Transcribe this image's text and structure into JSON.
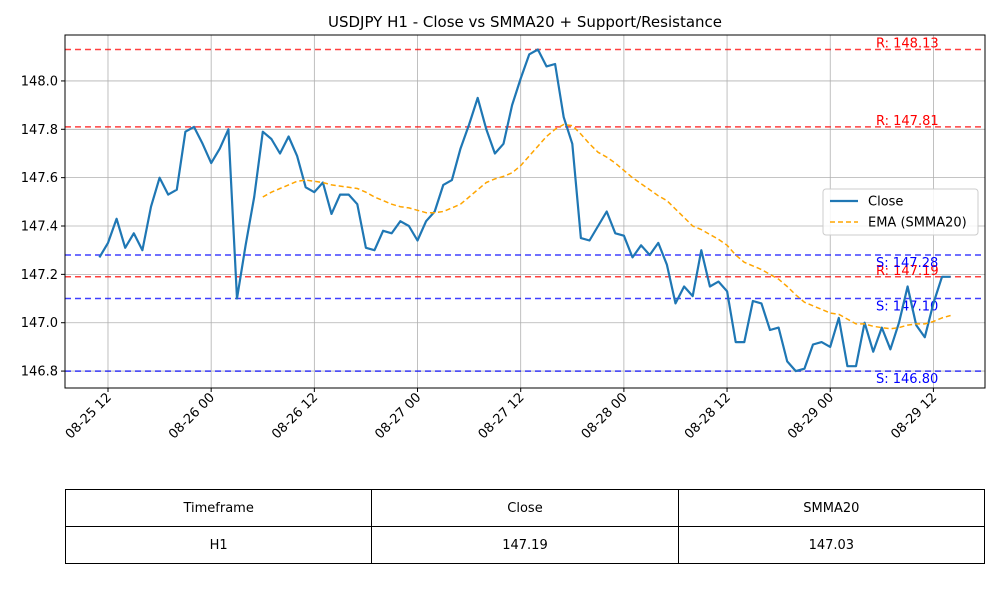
{
  "chart_data": {
    "type": "line",
    "title": "USDJPY H1 - Close vs SMMA20 + Support/Resistance",
    "xlabel": "",
    "ylabel": "",
    "x_range": [
      "2025-08-25 07:00",
      "2025-08-29 18:00"
    ],
    "ylim": [
      146.73,
      148.19
    ],
    "grid": true,
    "legend_placement": "center-right",
    "x_ticks": [
      {
        "t": "2025-08-25 12:00",
        "label": "08-25 12"
      },
      {
        "t": "2025-08-26 00:00",
        "label": "08-26 00"
      },
      {
        "t": "2025-08-26 12:00",
        "label": "08-26 12"
      },
      {
        "t": "2025-08-27 00:00",
        "label": "08-27 00"
      },
      {
        "t": "2025-08-27 12:00",
        "label": "08-27 12"
      },
      {
        "t": "2025-08-28 00:00",
        "label": "08-28 00"
      },
      {
        "t": "2025-08-28 12:00",
        "label": "08-28 12"
      },
      {
        "t": "2025-08-29 00:00",
        "label": "08-29 00"
      },
      {
        "t": "2025-08-29 12:00",
        "label": "08-29 12"
      }
    ],
    "y_ticks": [
      {
        "v": 146.8,
        "label": "146.8"
      },
      {
        "v": 147.0,
        "label": "147.0"
      },
      {
        "v": 147.2,
        "label": "147.2"
      },
      {
        "v": 147.4,
        "label": "147.4"
      },
      {
        "v": 147.6,
        "label": "147.6"
      },
      {
        "v": 147.8,
        "label": "147.8"
      },
      {
        "v": 148.0,
        "label": "148.0"
      }
    ],
    "series": [
      {
        "name": "Close",
        "color": "#1f77b4",
        "style": "solid",
        "points": [
          [
            "2025-08-25 11:00",
            147.27
          ],
          [
            "2025-08-25 12:00",
            147.33
          ],
          [
            "2025-08-25 13:00",
            147.43
          ],
          [
            "2025-08-25 14:00",
            147.31
          ],
          [
            "2025-08-25 15:00",
            147.37
          ],
          [
            "2025-08-25 16:00",
            147.3
          ],
          [
            "2025-08-25 17:00",
            147.48
          ],
          [
            "2025-08-25 18:00",
            147.6
          ],
          [
            "2025-08-25 19:00",
            147.53
          ],
          [
            "2025-08-25 20:00",
            147.55
          ],
          [
            "2025-08-25 21:00",
            147.79
          ],
          [
            "2025-08-25 22:00",
            147.81
          ],
          [
            "2025-08-25 23:00",
            147.74
          ],
          [
            "2025-08-26 00:00",
            147.66
          ],
          [
            "2025-08-26 01:00",
            147.72
          ],
          [
            "2025-08-26 02:00",
            147.8
          ],
          [
            "2025-08-26 03:00",
            147.1
          ],
          [
            "2025-08-26 04:00",
            147.32
          ],
          [
            "2025-08-26 05:00",
            147.52
          ],
          [
            "2025-08-26 06:00",
            147.79
          ],
          [
            "2025-08-26 07:00",
            147.76
          ],
          [
            "2025-08-26 08:00",
            147.7
          ],
          [
            "2025-08-26 09:00",
            147.77
          ],
          [
            "2025-08-26 10:00",
            147.69
          ],
          [
            "2025-08-26 11:00",
            147.56
          ],
          [
            "2025-08-26 12:00",
            147.54
          ],
          [
            "2025-08-26 13:00",
            147.58
          ],
          [
            "2025-08-26 14:00",
            147.45
          ],
          [
            "2025-08-26 15:00",
            147.53
          ],
          [
            "2025-08-26 16:00",
            147.53
          ],
          [
            "2025-08-26 17:00",
            147.49
          ],
          [
            "2025-08-26 18:00",
            147.31
          ],
          [
            "2025-08-26 19:00",
            147.3
          ],
          [
            "2025-08-26 20:00",
            147.38
          ],
          [
            "2025-08-26 21:00",
            147.37
          ],
          [
            "2025-08-26 22:00",
            147.42
          ],
          [
            "2025-08-26 23:00",
            147.4
          ],
          [
            "2025-08-27 00:00",
            147.34
          ],
          [
            "2025-08-27 01:00",
            147.42
          ],
          [
            "2025-08-27 02:00",
            147.46
          ],
          [
            "2025-08-27 03:00",
            147.57
          ],
          [
            "2025-08-27 04:00",
            147.59
          ],
          [
            "2025-08-27 05:00",
            147.72
          ],
          [
            "2025-08-27 06:00",
            147.82
          ],
          [
            "2025-08-27 07:00",
            147.93
          ],
          [
            "2025-08-27 08:00",
            147.8
          ],
          [
            "2025-08-27 09:00",
            147.7
          ],
          [
            "2025-08-27 10:00",
            147.74
          ],
          [
            "2025-08-27 11:00",
            147.9
          ],
          [
            "2025-08-27 12:00",
            148.01
          ],
          [
            "2025-08-27 13:00",
            148.11
          ],
          [
            "2025-08-27 14:00",
            148.13
          ],
          [
            "2025-08-27 15:00",
            148.06
          ],
          [
            "2025-08-27 16:00",
            148.07
          ],
          [
            "2025-08-27 17:00",
            147.85
          ],
          [
            "2025-08-27 18:00",
            147.74
          ],
          [
            "2025-08-27 19:00",
            147.35
          ],
          [
            "2025-08-27 20:00",
            147.34
          ],
          [
            "2025-08-27 21:00",
            147.4
          ],
          [
            "2025-08-27 22:00",
            147.46
          ],
          [
            "2025-08-27 23:00",
            147.37
          ],
          [
            "2025-08-28 00:00",
            147.36
          ],
          [
            "2025-08-28 01:00",
            147.27
          ],
          [
            "2025-08-28 02:00",
            147.32
          ],
          [
            "2025-08-28 03:00",
            147.28
          ],
          [
            "2025-08-28 04:00",
            147.33
          ],
          [
            "2025-08-28 05:00",
            147.24
          ],
          [
            "2025-08-28 06:00",
            147.08
          ],
          [
            "2025-08-28 07:00",
            147.15
          ],
          [
            "2025-08-28 08:00",
            147.11
          ],
          [
            "2025-08-28 09:00",
            147.3
          ],
          [
            "2025-08-28 10:00",
            147.15
          ],
          [
            "2025-08-28 11:00",
            147.17
          ],
          [
            "2025-08-28 12:00",
            147.13
          ],
          [
            "2025-08-28 13:00",
            146.92
          ],
          [
            "2025-08-28 14:00",
            146.92
          ],
          [
            "2025-08-28 15:00",
            147.09
          ],
          [
            "2025-08-28 16:00",
            147.08
          ],
          [
            "2025-08-28 17:00",
            146.97
          ],
          [
            "2025-08-28 18:00",
            146.98
          ],
          [
            "2025-08-28 19:00",
            146.84
          ],
          [
            "2025-08-28 20:00",
            146.8
          ],
          [
            "2025-08-28 21:00",
            146.81
          ],
          [
            "2025-08-28 22:00",
            146.91
          ],
          [
            "2025-08-28 23:00",
            146.92
          ],
          [
            "2025-08-29 00:00",
            146.9
          ],
          [
            "2025-08-29 01:00",
            147.02
          ],
          [
            "2025-08-29 02:00",
            146.82
          ],
          [
            "2025-08-29 03:00",
            146.82
          ],
          [
            "2025-08-29 04:00",
            147.0
          ],
          [
            "2025-08-29 05:00",
            146.88
          ],
          [
            "2025-08-29 06:00",
            146.98
          ],
          [
            "2025-08-29 07:00",
            146.89
          ],
          [
            "2025-08-29 08:00",
            147.0
          ],
          [
            "2025-08-29 09:00",
            147.15
          ],
          [
            "2025-08-29 10:00",
            146.99
          ],
          [
            "2025-08-29 11:00",
            146.94
          ],
          [
            "2025-08-29 12:00",
            147.08
          ],
          [
            "2025-08-29 13:00",
            147.19
          ],
          [
            "2025-08-29 14:00",
            147.19
          ]
        ]
      },
      {
        "name": "EMA (SMMA20)",
        "color": "#ffa500",
        "style": "dashed",
        "points": [
          [
            "2025-08-26 06:00",
            147.52
          ],
          [
            "2025-08-26 07:00",
            147.54
          ],
          [
            "2025-08-26 08:00",
            147.555
          ],
          [
            "2025-08-26 09:00",
            147.57
          ],
          [
            "2025-08-26 10:00",
            147.585
          ],
          [
            "2025-08-26 11:00",
            147.59
          ],
          [
            "2025-08-26 12:00",
            147.585
          ],
          [
            "2025-08-26 13:00",
            147.58
          ],
          [
            "2025-08-26 14:00",
            147.57
          ],
          [
            "2025-08-26 15:00",
            147.565
          ],
          [
            "2025-08-26 16:00",
            147.56
          ],
          [
            "2025-08-26 17:00",
            147.555
          ],
          [
            "2025-08-26 18:00",
            147.54
          ],
          [
            "2025-08-26 19:00",
            147.52
          ],
          [
            "2025-08-26 20:00",
            147.505
          ],
          [
            "2025-08-26 21:00",
            147.49
          ],
          [
            "2025-08-26 22:00",
            147.48
          ],
          [
            "2025-08-26 23:00",
            147.475
          ],
          [
            "2025-08-27 00:00",
            147.465
          ],
          [
            "2025-08-27 01:00",
            147.455
          ],
          [
            "2025-08-27 02:00",
            147.455
          ],
          [
            "2025-08-27 03:00",
            147.46
          ],
          [
            "2025-08-27 04:00",
            147.475
          ],
          [
            "2025-08-27 05:00",
            147.49
          ],
          [
            "2025-08-27 06:00",
            147.52
          ],
          [
            "2025-08-27 07:00",
            147.55
          ],
          [
            "2025-08-27 08:00",
            147.58
          ],
          [
            "2025-08-27 09:00",
            147.595
          ],
          [
            "2025-08-27 10:00",
            147.605
          ],
          [
            "2025-08-27 11:00",
            147.62
          ],
          [
            "2025-08-27 12:00",
            147.65
          ],
          [
            "2025-08-27 13:00",
            147.69
          ],
          [
            "2025-08-27 14:00",
            147.73
          ],
          [
            "2025-08-27 15:00",
            147.77
          ],
          [
            "2025-08-27 16:00",
            147.8
          ],
          [
            "2025-08-27 17:00",
            147.82
          ],
          [
            "2025-08-27 18:00",
            147.815
          ],
          [
            "2025-08-27 19:00",
            147.78
          ],
          [
            "2025-08-27 20:00",
            147.74
          ],
          [
            "2025-08-27 21:00",
            147.705
          ],
          [
            "2025-08-27 22:00",
            147.685
          ],
          [
            "2025-08-27 23:00",
            147.66
          ],
          [
            "2025-08-28 00:00",
            147.63
          ],
          [
            "2025-08-28 01:00",
            147.6
          ],
          [
            "2025-08-28 02:00",
            147.575
          ],
          [
            "2025-08-28 03:00",
            147.55
          ],
          [
            "2025-08-28 04:00",
            147.525
          ],
          [
            "2025-08-28 05:00",
            147.505
          ],
          [
            "2025-08-28 06:00",
            147.47
          ],
          [
            "2025-08-28 07:00",
            147.435
          ],
          [
            "2025-08-28 08:00",
            147.4
          ],
          [
            "2025-08-28 09:00",
            147.385
          ],
          [
            "2025-08-28 10:00",
            147.365
          ],
          [
            "2025-08-28 11:00",
            147.345
          ],
          [
            "2025-08-28 12:00",
            147.32
          ],
          [
            "2025-08-28 13:00",
            147.28
          ],
          [
            "2025-08-28 14:00",
            147.25
          ],
          [
            "2025-08-28 15:00",
            147.235
          ],
          [
            "2025-08-28 16:00",
            147.22
          ],
          [
            "2025-08-28 17:00",
            147.2
          ],
          [
            "2025-08-28 18:00",
            147.18
          ],
          [
            "2025-08-28 19:00",
            147.15
          ],
          [
            "2025-08-28 20:00",
            147.115
          ],
          [
            "2025-08-28 21:00",
            147.085
          ],
          [
            "2025-08-28 22:00",
            147.07
          ],
          [
            "2025-08-28 23:00",
            147.055
          ],
          [
            "2025-08-29 00:00",
            147.04
          ],
          [
            "2025-08-29 01:00",
            147.035
          ],
          [
            "2025-08-29 02:00",
            147.015
          ],
          [
            "2025-08-29 03:00",
            146.995
          ],
          [
            "2025-08-29 04:00",
            146.995
          ],
          [
            "2025-08-29 05:00",
            146.985
          ],
          [
            "2025-08-29 06:00",
            146.98
          ],
          [
            "2025-08-29 07:00",
            146.975
          ],
          [
            "2025-08-29 08:00",
            146.98
          ],
          [
            "2025-08-29 09:00",
            146.99
          ],
          [
            "2025-08-29 10:00",
            146.995
          ],
          [
            "2025-08-29 11:00",
            146.995
          ],
          [
            "2025-08-29 12:00",
            147.005
          ],
          [
            "2025-08-29 13:00",
            147.02
          ],
          [
            "2025-08-29 14:00",
            147.03
          ]
        ]
      }
    ],
    "levels": [
      {
        "kind": "resistance",
        "value": 148.13,
        "label": "R: 148.13",
        "color": "#ff0000"
      },
      {
        "kind": "resistance",
        "value": 147.81,
        "label": "R: 147.81",
        "color": "#ff0000"
      },
      {
        "kind": "resistance",
        "value": 147.19,
        "label": "R: 147.19",
        "color": "#ff0000"
      },
      {
        "kind": "support",
        "value": 147.28,
        "label": "S: 147.28",
        "color": "#0000ff"
      },
      {
        "kind": "support",
        "value": 147.1,
        "label": "S: 147.10",
        "color": "#0000ff"
      },
      {
        "kind": "support",
        "value": 146.8,
        "label": "S: 146.80",
        "color": "#0000ff"
      }
    ],
    "legend": [
      {
        "label": "Close",
        "color": "#1f77b4",
        "style": "solid"
      },
      {
        "label": "EMA (SMMA20)",
        "color": "#ffa500",
        "style": "dashed"
      }
    ]
  },
  "table": {
    "headers": [
      "Timeframe",
      "Close",
      "SMMA20"
    ],
    "rows": [
      [
        "H1",
        "147.19",
        "147.03"
      ]
    ]
  }
}
